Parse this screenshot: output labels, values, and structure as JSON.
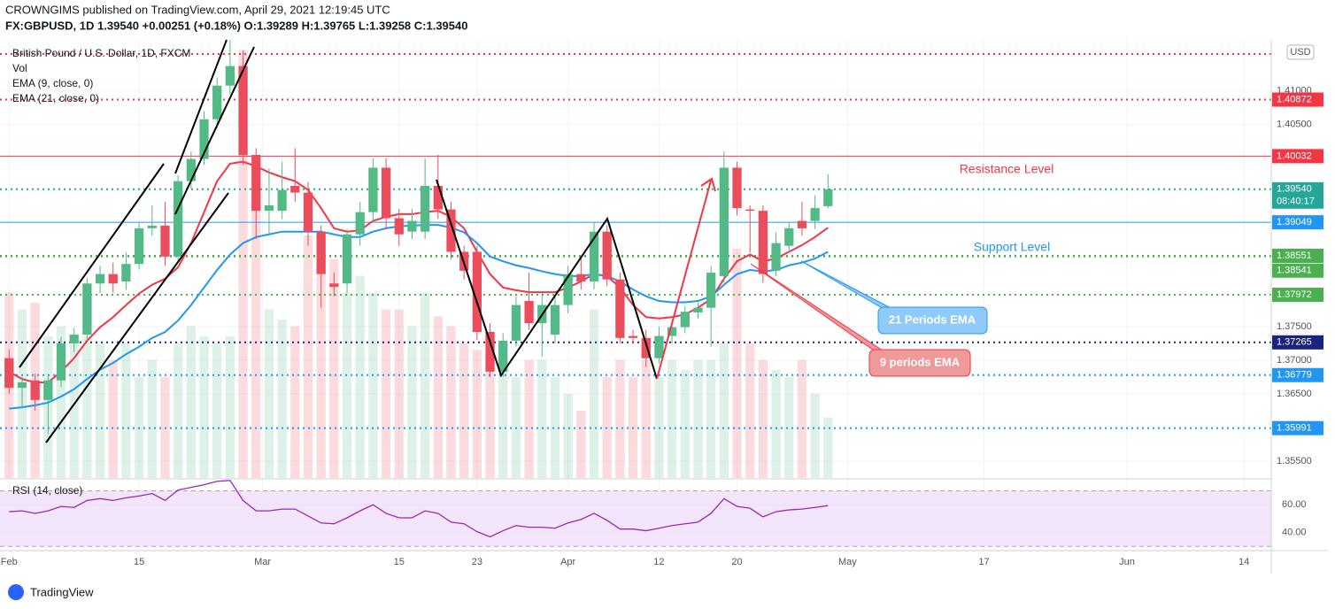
{
  "header": {
    "line1": "CROWNGIMS published on TradingView.com, April 29, 2021 12:19:45 UTC",
    "line2": "FX:GBPUSD, 1D  1.39540  +0.00251 (+0.18%)  O:1.39289  H:1.39765  L:1.39258  C:1.39540"
  },
  "footer": "TradingView",
  "annotations": [
    "Resistance Level",
    "Support Level",
    "21 Periods EMA",
    "9 periods EMA"
  ],
  "chart_data": {
    "type": "candlestick",
    "title": "British Pound / U.S. Dollar, 1D, FXCM",
    "currency": "USD",
    "up_color": "#53b987",
    "down_color": "#eb4d5c",
    "xlim": [
      -0.7,
      97.1
    ],
    "xticks": [
      {
        "value": 0,
        "label": "Feb"
      },
      {
        "value": 10,
        "label": "15"
      },
      {
        "value": 19.5,
        "label": "Mar"
      },
      {
        "value": 30,
        "label": "15"
      },
      {
        "value": 36,
        "label": "23"
      },
      {
        "value": 43,
        "label": "Apr"
      },
      {
        "value": 50,
        "label": "12"
      },
      {
        "value": 56,
        "label": "20"
      },
      {
        "value": 64.5,
        "label": "May"
      },
      {
        "value": 75,
        "label": "17"
      },
      {
        "value": 86,
        "label": "Jun"
      },
      {
        "value": 95,
        "label": "14"
      }
    ],
    "ylim": [
      1.3525,
      1.4176
    ],
    "yticks": [
      {
        "value": 1.41,
        "label": "1.41000"
      },
      {
        "value": 1.405,
        "label": "1.40500"
      },
      {
        "value": 1.375,
        "label": "1.37500"
      },
      {
        "value": 1.37,
        "label": "1.37000"
      },
      {
        "value": 1.365,
        "label": "1.36500"
      },
      {
        "value": 1.355,
        "label": "1.35500"
      }
    ],
    "open": [
      1.3703,
      1.3659,
      1.367,
      1.3641,
      1.367,
      1.3725,
      1.3738,
      1.3814,
      1.3828,
      1.3817,
      1.3843,
      1.3896,
      1.39,
      1.3854,
      1.3966,
      1.3999,
      1.4058,
      1.4108,
      1.4137,
      1.4005,
      1.3922,
      1.3922,
      1.3959,
      1.3949,
      1.3891,
      1.3814,
      1.3814,
      1.3887,
      1.392,
      1.3986,
      1.3911,
      1.3891,
      1.3891,
      1.3959,
      1.3924,
      1.3861,
      1.3861,
      1.3742,
      1.3683,
      1.3729,
      1.3788,
      1.3755,
      1.3738,
      1.3782,
      1.3828,
      1.3817,
      1.3891,
      1.382,
      1.3736,
      1.3733,
      1.3703,
      1.3736,
      1.3749,
      1.3771,
      1.3778,
      1.3825,
      1.3986,
      1.3924,
      1.3922,
      1.3833,
      1.387,
      1.3907,
      1.3907,
      1.39289
    ],
    "high": [
      1.3716,
      1.3675,
      1.368,
      1.3676,
      1.3735,
      1.3748,
      1.3822,
      1.384,
      1.3845,
      1.386,
      1.3905,
      1.393,
      1.3935,
      1.3975,
      1.401,
      1.407,
      1.412,
      1.4176,
      1.416,
      1.4015,
      1.3985,
      1.3995,
      1.4015,
      1.3965,
      1.39,
      1.383,
      1.3895,
      1.3935,
      1.4,
      1.4,
      1.3925,
      1.3925,
      1.4,
      1.4005,
      1.3935,
      1.387,
      1.387,
      1.3755,
      1.374,
      1.3795,
      1.383,
      1.38,
      1.3795,
      1.384,
      1.3855,
      1.3905,
      1.39,
      1.383,
      1.3745,
      1.3745,
      1.375,
      1.376,
      1.378,
      1.3785,
      1.384,
      1.401,
      1.3995,
      1.393,
      1.393,
      1.389,
      1.3905,
      1.3935,
      1.3945,
      1.39765
    ],
    "low": [
      1.365,
      1.363,
      1.3625,
      1.359,
      1.366,
      1.3712,
      1.373,
      1.38,
      1.38,
      1.3805,
      1.3835,
      1.3885,
      1.384,
      1.3845,
      1.3955,
      1.399,
      1.4045,
      1.4095,
      1.399,
      1.388,
      1.3885,
      1.391,
      1.3935,
      1.387,
      1.3778,
      1.3795,
      1.38,
      1.387,
      1.3905,
      1.3895,
      1.387,
      1.388,
      1.388,
      1.391,
      1.385,
      1.382,
      1.373,
      1.3675,
      1.3675,
      1.372,
      1.3745,
      1.3705,
      1.3725,
      1.377,
      1.3805,
      1.3805,
      1.381,
      1.3725,
      1.3725,
      1.369,
      1.3695,
      1.3725,
      1.374,
      1.3762,
      1.372,
      1.3815,
      1.3915,
      1.386,
      1.3815,
      1.3825,
      1.386,
      1.3885,
      1.3895,
      1.39258
    ],
    "close": [
      1.3659,
      1.3667,
      1.3641,
      1.367,
      1.3725,
      1.3738,
      1.3814,
      1.3828,
      1.3814,
      1.3843,
      1.3896,
      1.39,
      1.3854,
      1.3966,
      1.3999,
      1.4058,
      1.4108,
      1.4137,
      1.4005,
      1.3922,
      1.393,
      1.3953,
      1.3949,
      1.3891,
      1.3828,
      1.3809,
      1.3887,
      1.392,
      1.3986,
      1.3911,
      1.3887,
      1.3907,
      1.3959,
      1.3924,
      1.3861,
      1.3833,
      1.3742,
      1.3683,
      1.3729,
      1.3782,
      1.3755,
      1.3782,
      1.3782,
      1.3828,
      1.3817,
      1.3891,
      1.382,
      1.3733,
      1.3733,
      1.3703,
      1.3736,
      1.3749,
      1.3772,
      1.3778,
      1.383,
      1.3986,
      1.3926,
      1.3922,
      1.3828,
      1.3874,
      1.3896,
      1.3896,
      1.3926,
      1.3954
    ],
    "lines": [
      {
        "name": "EMA (9, close, 0)",
        "color": "#f23645",
        "values": [
          1.3683,
          1.3672,
          1.3667,
          1.3667,
          1.3683,
          1.3703,
          1.3729,
          1.3749,
          1.3764,
          1.3782,
          1.3799,
          1.3812,
          1.3821,
          1.3838,
          1.3874,
          1.392,
          1.3966,
          1.3992,
          1.3995,
          1.3988,
          1.3979,
          1.3972,
          1.3966,
          1.3953,
          1.3926,
          1.3896,
          1.3891,
          1.3893,
          1.3907,
          1.3913,
          1.3917,
          1.3917,
          1.392,
          1.3922,
          1.3913,
          1.3896,
          1.3861,
          1.3828,
          1.3808,
          1.3804,
          1.3801,
          1.3801,
          1.3801,
          1.3808,
          1.3817,
          1.3828,
          1.3825,
          1.3808,
          1.3782,
          1.3764,
          1.3762,
          1.3764,
          1.3768,
          1.3778,
          1.3791,
          1.3821,
          1.3847,
          1.3857,
          1.3847,
          1.3851,
          1.3861,
          1.3871,
          1.3883,
          1.3897
        ]
      },
      {
        "name": "EMA (21, close, 0)",
        "color": "#2196f3",
        "values": [
          1.3628,
          1.363,
          1.3633,
          1.3637,
          1.3646,
          1.3657,
          1.3672,
          1.3686,
          1.3696,
          1.3709,
          1.372,
          1.3733,
          1.3742,
          1.3759,
          1.3782,
          1.3808,
          1.3834,
          1.3857,
          1.3874,
          1.3883,
          1.3887,
          1.3891,
          1.3891,
          1.3891,
          1.3891,
          1.3887,
          1.3883,
          1.3883,
          1.3891,
          1.3896,
          1.3899,
          1.39,
          1.3901,
          1.3901,
          1.3897,
          1.389,
          1.3874,
          1.3854,
          1.3847,
          1.3841,
          1.3837,
          1.3832,
          1.3828,
          1.3825,
          1.3825,
          1.3828,
          1.3825,
          1.3817,
          1.3805,
          1.3795,
          1.3788,
          1.3786,
          1.3786,
          1.3788,
          1.3795,
          1.3812,
          1.3828,
          1.3834,
          1.3832,
          1.3834,
          1.3841,
          1.3845,
          1.3851,
          1.3861
        ]
      }
    ],
    "volume": {
      "name": "Vol",
      "ylim": [
        0,
        130
      ],
      "values": [
        55,
        50,
        52,
        42,
        45,
        40,
        42,
        40,
        35,
        40,
        30,
        35,
        30,
        40,
        45,
        42,
        40,
        42,
        127,
        82,
        50,
        47,
        45,
        72,
        73,
        65,
        55,
        60,
        55,
        50,
        50,
        45,
        55,
        48,
        45,
        40,
        38,
        35,
        32,
        30,
        35,
        35,
        30,
        25,
        20,
        50,
        30,
        35,
        30,
        35,
        30,
        35,
        32,
        35,
        35,
        40,
        68,
        40,
        35,
        32,
        30,
        35,
        25,
        18
      ]
    },
    "levels": [
      {
        "value": 1.4155,
        "color": "#f23645",
        "style": "dotted"
      },
      {
        "value": 1.40872,
        "label": "1.40872",
        "color": "#f23645",
        "style": "dotted"
      },
      {
        "value": 1.40032,
        "label": "1.40032",
        "color": "#f23645",
        "style": "solid"
      },
      {
        "value": 1.3954,
        "label": "1.39540",
        "color": "#26a69a",
        "style": "dotted",
        "countdown": "08:40:17"
      },
      {
        "value": 1.39049,
        "label": "1.39049",
        "color": "#2196f3",
        "style": "solid"
      },
      {
        "value": 1.38551,
        "label": "1.38551",
        "color": "#4caf50",
        "style": "dotted"
      },
      {
        "value": 1.38541,
        "label": "1.38541",
        "color": "#4caf50",
        "style": "dotted"
      },
      {
        "value": 1.37972,
        "label": "1.37972",
        "color": "#4caf50",
        "style": "dotted"
      },
      {
        "value": 1.37265,
        "label": "1.37265",
        "color": "#1a237e",
        "style": "dotted"
      },
      {
        "value": 1.36779,
        "label": "1.36779",
        "color": "#2196f3",
        "style": "dotted"
      },
      {
        "value": 1.35991,
        "label": "1.35991",
        "color": "#2196f3",
        "style": "dotted"
      }
    ],
    "rsi": {
      "name": "RSI (14, close)",
      "color": "#9c27b0",
      "ylim": [
        27,
        78
      ],
      "bands": [
        30,
        70
      ],
      "yticks": [
        {
          "value": 60,
          "label": "60.00"
        },
        {
          "value": 40,
          "label": "40.00"
        }
      ],
      "values": [
        55.0,
        55.6,
        53.8,
        55.6,
        58.8,
        58.1,
        63.1,
        64.4,
        63.1,
        65.0,
        66.3,
        68.1,
        63.1,
        70.6,
        72.5,
        74.4,
        76.9,
        77.5,
        63.1,
        55.6,
        55.6,
        56.9,
        56.9,
        51.9,
        46.9,
        46.3,
        50.6,
        55.6,
        60.0,
        53.8,
        50.6,
        50.6,
        55.6,
        53.8,
        47.5,
        46.3,
        40.6,
        36.9,
        41.3,
        45.0,
        43.8,
        43.8,
        43.1,
        46.9,
        49.4,
        53.8,
        48.8,
        42.5,
        42.5,
        41.3,
        43.1,
        45.0,
        46.3,
        47.5,
        53.8,
        64.4,
        58.8,
        57.5,
        51.3,
        55.0,
        56.3,
        56.9,
        58.1,
        59.4
      ]
    }
  }
}
